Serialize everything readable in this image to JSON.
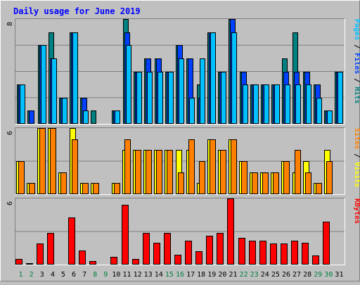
{
  "chart_data": {
    "type": "bar",
    "title": "Daily usage for June 2019",
    "days": [
      "1",
      "2",
      "3",
      "4",
      "5",
      "6",
      "7",
      "8",
      "9",
      "10",
      "11",
      "12",
      "13",
      "14",
      "15",
      "16",
      "17",
      "18",
      "19",
      "20",
      "21",
      "22",
      "23",
      "24",
      "25",
      "26",
      "27",
      "28",
      "29",
      "30",
      "31"
    ],
    "weekend_days": [
      "1",
      "2",
      "8",
      "9",
      "15",
      "16",
      "22",
      "23",
      "29",
      "30"
    ],
    "panels": [
      {
        "id": "hits_files_pages",
        "ymax_label": "8",
        "ymax": 8,
        "right_label": [
          {
            "text": "Pages",
            "color": "#00c0ff"
          },
          {
            "text": " / ",
            "color": "#000000"
          },
          {
            "text": "Files",
            "color": "#0040ff"
          },
          {
            "text": " / ",
            "color": "#000000"
          },
          {
            "text": "Hits",
            "color": "#008080"
          }
        ],
        "series": [
          {
            "name": "Hits",
            "color": "#008080",
            "values": [
              3,
              1,
              6,
              7,
              2,
              7,
              2,
              1,
              0,
              1,
              8,
              4,
              5,
              5,
              4,
              6,
              5,
              3,
              7,
              4,
              8,
              4,
              3,
              3,
              3,
              5,
              7,
              4,
              3,
              1,
              4
            ]
          },
          {
            "name": "Files",
            "color": "#0040ff",
            "values": [
              3,
              1,
              6,
              5,
              2,
              7,
              2,
              0,
              0,
              1,
              7,
              4,
              5,
              5,
              4,
              6,
              5,
              2,
              7,
              4,
              8,
              4,
              3,
              3,
              3,
              4,
              4,
              4,
              3,
              1,
              4
            ]
          },
          {
            "name": "Pages",
            "color": "#00c0ff",
            "values": [
              3,
              0,
              6,
              5,
              2,
              7,
              1,
              0,
              0,
              1,
              6,
              4,
              4,
              4,
              4,
              5,
              2,
              5,
              7,
              4,
              7,
              3,
              3,
              3,
              3,
              3,
              3,
              3,
              2,
              1,
              4
            ]
          }
        ]
      },
      {
        "id": "visits_sites",
        "ymax_label": "6",
        "ymax": 6,
        "right_label": [
          {
            "text": "Sites",
            "color": "#ff8000"
          },
          {
            "text": " / ",
            "color": "#000000"
          },
          {
            "text": "Visits",
            "color": "#ffff00"
          }
        ],
        "series": [
          {
            "name": "Visits",
            "color": "#ffff00",
            "values": [
              3,
              1,
              6,
              6,
              2,
              6,
              1,
              1,
              0,
              1,
              4,
              4,
              4,
              4,
              4,
              4,
              4,
              1,
              5,
              4,
              5,
              3,
              2,
              2,
              2,
              3,
              2,
              3,
              1,
              4,
              0
            ]
          },
          {
            "name": "Sites",
            "color": "#ff8000",
            "values": [
              3,
              1,
              6,
              6,
              2,
              5,
              1,
              1,
              0,
              1,
              5,
              4,
              4,
              4,
              4,
              2,
              5,
              3,
              5,
              4,
              5,
              3,
              2,
              2,
              2,
              3,
              4,
              2,
              1,
              3,
              0
            ]
          }
        ]
      },
      {
        "id": "kbytes",
        "ymax_label": "6",
        "ymax": 6,
        "right_label": [
          {
            "text": "KBytes",
            "color": "#ff0000"
          }
        ],
        "series": [
          {
            "name": "KBytes",
            "color": "#ff0000",
            "values": [
              0.5,
              0.1,
              1.9,
              2.9,
              0,
              4.3,
              1.3,
              0.3,
              0,
              0.7,
              5.4,
              0.5,
              2.9,
              2.0,
              2.9,
              0.9,
              2.2,
              1.2,
              2.6,
              2.9,
              6.0,
              2.4,
              2.2,
              2.2,
              1.9,
              1.9,
              2.2,
              2.0,
              0.8,
              3.9,
              0
            ]
          }
        ]
      }
    ]
  }
}
